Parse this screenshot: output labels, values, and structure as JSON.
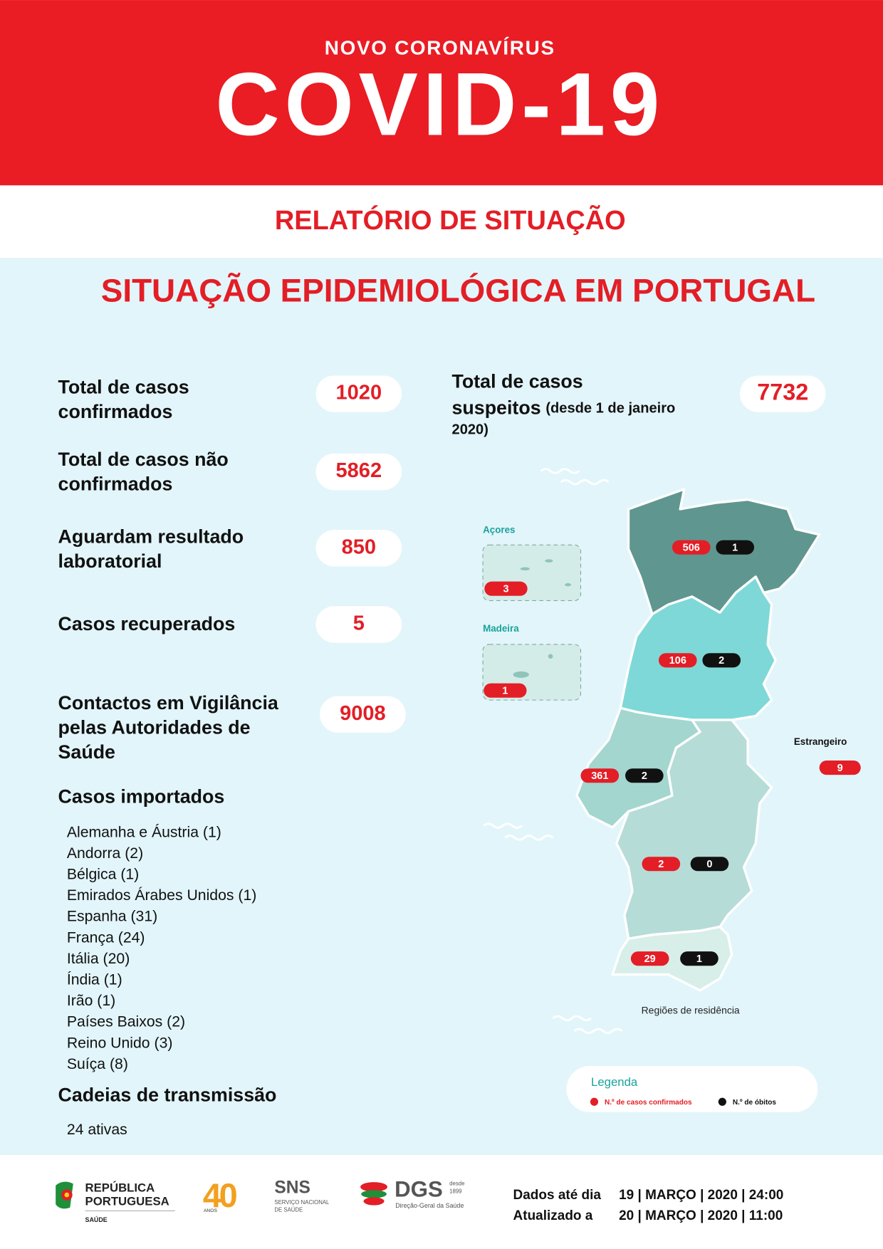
{
  "header": {
    "kicker": "NOVO CORONAVÍRUS",
    "title": "COVID-19",
    "subtitle": "RELATÓRIO DE SITUAÇÃO"
  },
  "section_title": "SITUAÇÃO EPIDEMIOLÓGICA EM PORTUGAL",
  "stats": [
    {
      "label": [
        "Total de casos",
        "confirmados"
      ],
      "value": 1020
    },
    {
      "label": [
        "Total de casos não",
        "confirmados"
      ],
      "value": 5862
    },
    {
      "label": [
        "Aguardam resultado",
        "laboratorial"
      ],
      "value": 850
    },
    {
      "label": [
        "Casos recuperados"
      ],
      "value": 5
    },
    {
      "label": [
        "Contactos em Vigilância",
        "pelas Autoridades de",
        "Saúde"
      ],
      "value": 9008
    }
  ],
  "suspects": {
    "label": [
      "Total de casos",
      "suspeitos"
    ],
    "note": [
      "(desde 1 de janeiro",
      "2020)"
    ],
    "value": 7732
  },
  "imported": {
    "title": "Casos importados",
    "items": [
      "Alemanha e Áustria (1)",
      "Andorra (2)",
      "Bélgica (1)",
      "Emirados Árabes Unidos (1)",
      "Espanha (31)",
      "França (24)",
      "Itália (20)",
      "Índia (1)",
      "Irão (1)",
      "Países Baixos (2)",
      "Reino Unido (3)",
      "Suíça (8)"
    ]
  },
  "chains": {
    "title": "Cadeias de transmissão",
    "text": "24 ativas"
  },
  "map": {
    "azores": {
      "label": "Açores",
      "cases": 3
    },
    "madeira": {
      "label": "Madeira",
      "cases": 1
    },
    "foreign": {
      "label": "Estrangeiro",
      "cases": 9
    },
    "regions": [
      {
        "cases": 506,
        "deaths": 1
      },
      {
        "cases": 106,
        "deaths": 2
      },
      {
        "cases": 361,
        "deaths": 2
      },
      {
        "cases": 2,
        "deaths": 0
      },
      {
        "cases": 29,
        "deaths": 1
      }
    ],
    "caption": "Regiões de residência"
  },
  "legend": {
    "title": "Legenda",
    "cases": "N.º de casos confirmados",
    "deaths": "N.º de óbitos"
  },
  "footer": {
    "logos": {
      "republica": [
        "REPÚBLICA",
        "PORTUGUESA"
      ],
      "saude": "SAÚDE",
      "anos_number": "40",
      "anos": "ANOS",
      "sns": "SNS",
      "sns_name": [
        "SERVIÇO NACIONAL",
        "DE SAÚDE"
      ],
      "dgs": "DGS",
      "dgs_since": [
        "desde",
        "1899"
      ],
      "dgs_name": "Direção-Geral da Saúde"
    },
    "data_until_label": "Dados até dia",
    "data_until": "19 | MARÇO | 2020 | 24:00",
    "updated_label": "Atualizado a",
    "updated": "20 | MARÇO | 2020 | 11:00"
  }
}
